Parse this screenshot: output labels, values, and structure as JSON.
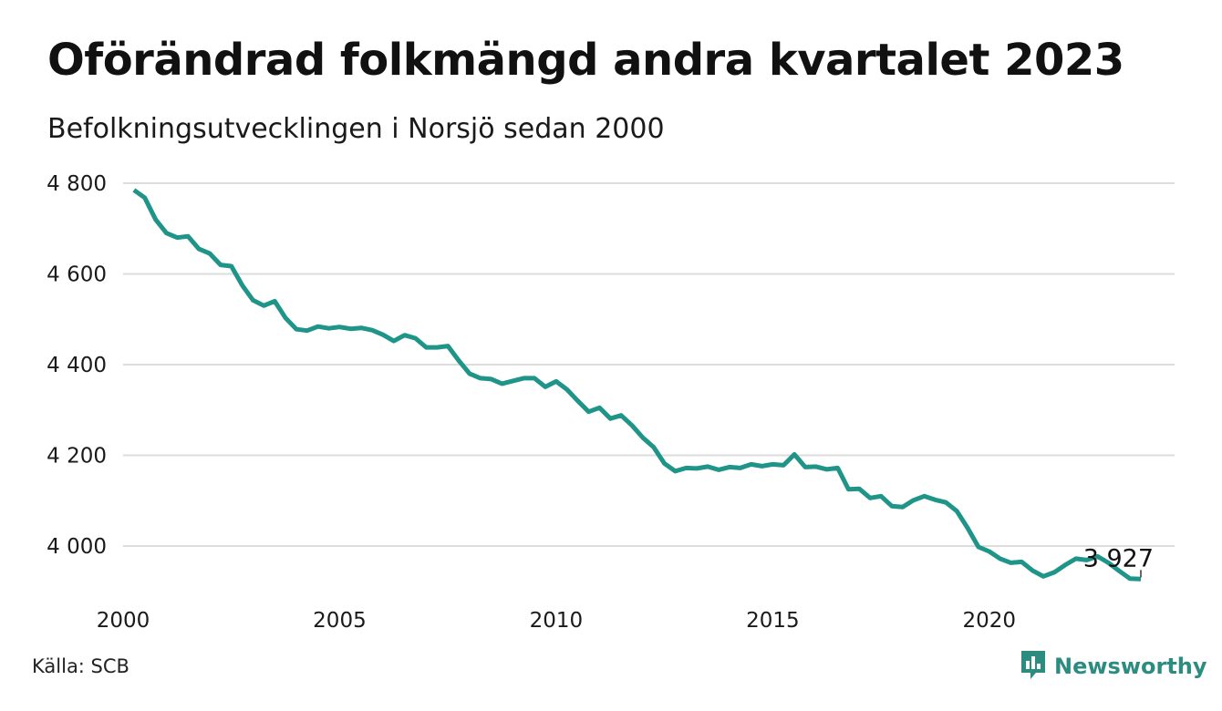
{
  "header": {
    "title": "Oförändrad folkmängd andra kvartalet 2023",
    "subtitle": "Befolkningsutvecklingen i Norsjö sedan 2000"
  },
  "footer": {
    "source": "Källa: SCB",
    "brand": "Newsworthy",
    "brand_icon": "bar-chart-logo-icon"
  },
  "colors": {
    "line": "#1f9488",
    "grid": "#dcdcdc",
    "brand": "#2c8c80"
  },
  "chart_data": {
    "type": "line",
    "title": "Oförändrad folkmängd andra kvartalet 2023",
    "subtitle": "Befolkningsutvecklingen i Norsjö sedan 2000",
    "xlabel": "",
    "ylabel": "",
    "xlim": [
      2000,
      2023.5
    ],
    "ylim": [
      3900,
      4810
    ],
    "x_ticks": [
      2000,
      2005,
      2010,
      2015,
      2020
    ],
    "y_ticks": [
      4000,
      4200,
      4400,
      4600,
      4800
    ],
    "y_tick_labels": [
      "4 000",
      "4 200",
      "4 400",
      "4 600",
      "4 800"
    ],
    "grid": true,
    "legend": "none",
    "end_label": "3 927",
    "series": [
      {
        "x_start": 2000.25,
        "x_step": 0.25,
        "values": [
          4785,
          4768,
          4720,
          4690,
          4680,
          4683,
          4655,
          4645,
          4620,
          4617,
          4575,
          4542,
          4530,
          4540,
          4503,
          4478,
          4475,
          4484,
          4480,
          4483,
          4479,
          4481,
          4476,
          4466,
          4452,
          4465,
          4458,
          4438,
          4438,
          4441,
          4409,
          4380,
          4370,
          4368,
          4358,
          4364,
          4370,
          4370,
          4351,
          4363,
          4345,
          4320,
          4296,
          4305,
          4281,
          4288,
          4266,
          4239,
          4218,
          4182,
          4165,
          4172,
          4171,
          4175,
          4168,
          4174,
          4172,
          4180,
          4176,
          4180,
          4178,
          4202,
          4174,
          4175,
          4169,
          4172,
          4125,
          4126,
          4106,
          4110,
          4088,
          4086,
          4101,
          4110,
          4102,
          4096,
          4077,
          4040,
          3998,
          3988,
          3972,
          3963,
          3965,
          3946,
          3933,
          3942,
          3958,
          3972,
          3969,
          3977,
          3963,
          3945,
          3928,
          3927
        ]
      }
    ]
  }
}
